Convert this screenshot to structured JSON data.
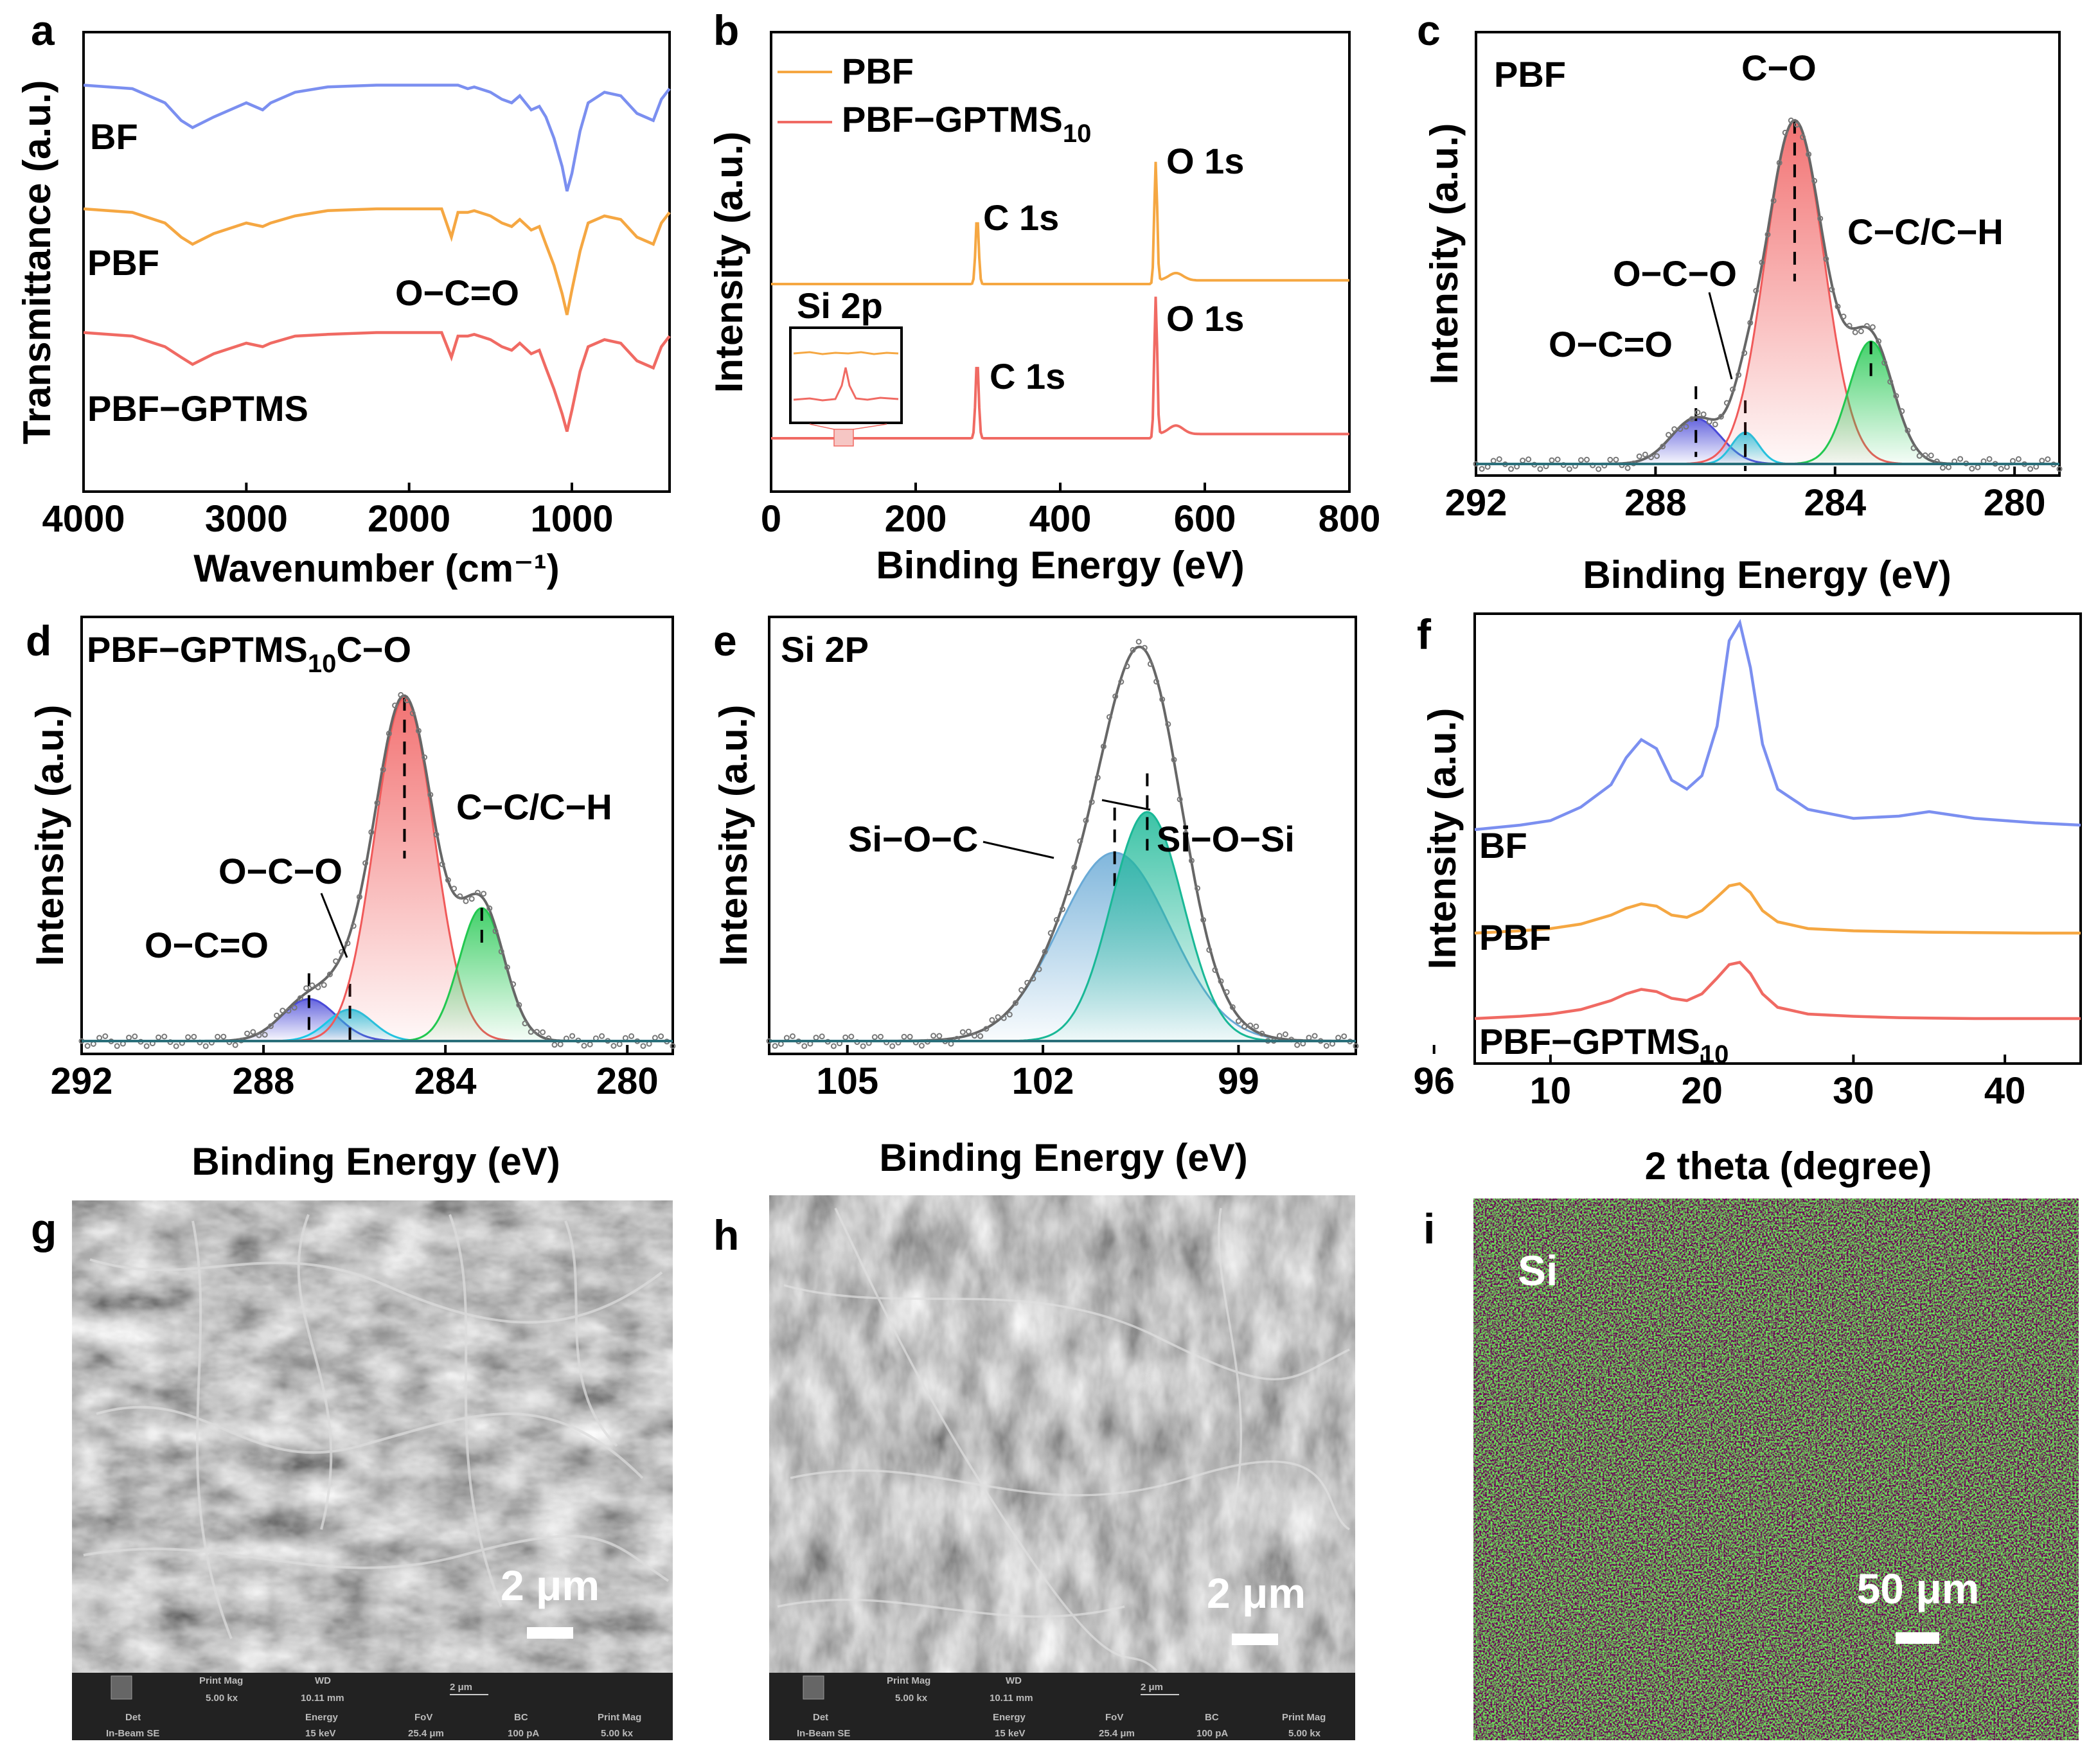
{
  "colors": {
    "BF": "#7b8ff0",
    "PBF": "#f5a742",
    "PBF-GPTMS": "#f06a63",
    "fit": "#666666",
    "oc_o": "#4a4ad8",
    "o_c_o": "#19c8e6",
    "c_o": "#f05a5a",
    "cc_ch": "#22c850",
    "si_o_c": "#6aaad6",
    "si_o_si": "#19b896",
    "edx": "#33cc33"
  },
  "chart_data": [
    {
      "panel": "a",
      "type": "line",
      "xlabel": "Wavenumber (cm⁻¹)",
      "ylabel": "Transmittance (a.u.)",
      "xlim": [
        4000,
        400
      ],
      "xticks": [
        "4000",
        "3000",
        "2000",
        "1000"
      ],
      "series": [
        {
          "name": "BF",
          "label": "BF",
          "key": "BF",
          "offset": 0.85,
          "x": [
            4000,
            3700,
            3500,
            3400,
            3330,
            3200,
            3000,
            2900,
            2850,
            2700,
            2500,
            2200,
            2000,
            1800,
            1700,
            1640,
            1600,
            1500,
            1430,
            1370,
            1320,
            1250,
            1200,
            1160,
            1110,
            1060,
            1030,
            1000,
            950,
            900,
            800,
            700,
            600,
            550,
            500,
            450,
            400
          ],
          "y": [
            0.85,
            0.84,
            0.8,
            0.75,
            0.73,
            0.76,
            0.8,
            0.78,
            0.8,
            0.83,
            0.845,
            0.85,
            0.85,
            0.85,
            0.85,
            0.84,
            0.845,
            0.83,
            0.81,
            0.8,
            0.82,
            0.78,
            0.79,
            0.76,
            0.7,
            0.62,
            0.55,
            0.6,
            0.72,
            0.8,
            0.83,
            0.82,
            0.77,
            0.76,
            0.75,
            0.81,
            0.84
          ]
        },
        {
          "name": "PBF",
          "label": "PBF",
          "key": "PBF",
          "offset": 0.5,
          "x": [
            4000,
            3700,
            3500,
            3400,
            3330,
            3200,
            3000,
            2900,
            2850,
            2700,
            2500,
            2200,
            2000,
            1800,
            1740,
            1700,
            1640,
            1600,
            1500,
            1430,
            1370,
            1320,
            1250,
            1200,
            1160,
            1110,
            1060,
            1030,
            1000,
            950,
            900,
            800,
            700,
            600,
            550,
            500,
            450,
            400
          ],
          "y": [
            0.5,
            0.49,
            0.46,
            0.42,
            0.4,
            0.43,
            0.46,
            0.45,
            0.46,
            0.48,
            0.495,
            0.5,
            0.5,
            0.5,
            0.42,
            0.49,
            0.49,
            0.495,
            0.48,
            0.46,
            0.45,
            0.47,
            0.44,
            0.45,
            0.4,
            0.34,
            0.26,
            0.2,
            0.27,
            0.38,
            0.46,
            0.48,
            0.47,
            0.42,
            0.41,
            0.4,
            0.46,
            0.49
          ]
        },
        {
          "name": "PBF−GPTMS",
          "label": "PBF−GPTMS",
          "key": "PBF-GPTMS",
          "offset": 0.15,
          "x": [
            4000,
            3700,
            3500,
            3400,
            3330,
            3200,
            3000,
            2900,
            2850,
            2700,
            2500,
            2200,
            2000,
            1800,
            1740,
            1700,
            1640,
            1600,
            1500,
            1430,
            1370,
            1320,
            1250,
            1200,
            1160,
            1110,
            1060,
            1030,
            1000,
            950,
            900,
            800,
            700,
            600,
            550,
            500,
            450,
            400
          ],
          "y": [
            0.15,
            0.14,
            0.11,
            0.08,
            0.06,
            0.09,
            0.12,
            0.11,
            0.12,
            0.14,
            0.145,
            0.15,
            0.15,
            0.15,
            0.08,
            0.14,
            0.14,
            0.145,
            0.13,
            0.11,
            0.1,
            0.12,
            0.09,
            0.1,
            0.05,
            -0.01,
            -0.08,
            -0.13,
            -0.07,
            0.04,
            0.11,
            0.13,
            0.12,
            0.07,
            0.06,
            0.05,
            0.11,
            0.14
          ]
        }
      ],
      "annotations": [
        "O−C=O"
      ]
    },
    {
      "panel": "b",
      "type": "line",
      "xlabel": "Binding Energy (eV)",
      "ylabel": "Intensity (a.u.)",
      "xlim": [
        0,
        800
      ],
      "xticks": [
        "0",
        "200",
        "400",
        "600",
        "800"
      ],
      "legend": [
        {
          "name": "PBF",
          "key": "PBF"
        },
        {
          "name": "PBF−GPTMS",
          "sub": "10",
          "key": "PBF-GPTMS"
        }
      ],
      "peaks": {
        "C1s": 285,
        "O1s": 532,
        "Si2p": 102
      },
      "labels": {
        "c1s": "C 1s",
        "o1s": "O 1s",
        "inset": "Si 2p"
      }
    },
    {
      "panel": "c",
      "type": "area",
      "title": "PBF",
      "xlabel": "Binding Energy (eV)",
      "ylabel": "Intensity (a.u.)",
      "xlim": [
        292,
        279
      ],
      "xticks": [
        "292",
        "288",
        "284",
        "280"
      ],
      "components": [
        {
          "name": "O−C=O",
          "center": 287.1,
          "height": 0.13,
          "width": 0.55,
          "key": "oc_o"
        },
        {
          "name": "O−C−O",
          "center": 286.0,
          "height": 0.09,
          "width": 0.3,
          "key": "o_c_o"
        },
        {
          "name": "C−O",
          "center": 284.9,
          "height": 0.98,
          "width": 0.65,
          "key": "c_o"
        },
        {
          "name": "C−C/C−H",
          "center": 283.2,
          "height": 0.35,
          "width": 0.5,
          "key": "cc_ch"
        }
      ]
    },
    {
      "panel": "d",
      "type": "area",
      "title": "PBF−GPTMS",
      "title_sub": "10",
      "xlabel": "Binding Energy (eV)",
      "ylabel": "Intensity (a.u.)",
      "xlim": [
        292,
        279
      ],
      "xticks": [
        "292",
        "288",
        "284",
        "280"
      ],
      "components": [
        {
          "name": "O−C=O",
          "center": 287.0,
          "height": 0.12,
          "width": 0.6,
          "key": "oc_o"
        },
        {
          "name": "O−C−O",
          "center": 286.1,
          "height": 0.09,
          "width": 0.5,
          "key": "o_c_o"
        },
        {
          "name": "C−O",
          "center": 284.9,
          "height": 0.98,
          "width": 0.65,
          "key": "c_o"
        },
        {
          "name": "C−C/C−H",
          "center": 283.2,
          "height": 0.38,
          "width": 0.5,
          "key": "cc_ch"
        }
      ]
    },
    {
      "panel": "e",
      "type": "area",
      "title": "Si 2P",
      "xlabel": "Binding Energy (eV)",
      "ylabel": "Intensity (a.u.)",
      "xlim": [
        106.2,
        97.2
      ],
      "xticks": [
        "105",
        "102",
        "99",
        "96"
      ],
      "components": [
        {
          "name": "Si−O−C",
          "center": 100.9,
          "height": 0.51,
          "width": 0.85,
          "key": "si_o_c"
        },
        {
          "name": "Si−O−Si",
          "center": 100.4,
          "height": 0.62,
          "width": 0.55,
          "key": "si_o_si"
        }
      ]
    },
    {
      "panel": "f",
      "type": "line",
      "xlabel": "2 theta (degree)",
      "ylabel": "Intensity (a.u.)",
      "xlim": [
        5,
        45
      ],
      "xticks": [
        "10",
        "20",
        "30",
        "40"
      ],
      "series": [
        {
          "name": "BF",
          "label": "BF",
          "key": "BF",
          "base": 0.52,
          "x": [
            5,
            8,
            10,
            12,
            14,
            15,
            16,
            17,
            18,
            19,
            20,
            21,
            21.8,
            22.5,
            23.2,
            24,
            25,
            27,
            30,
            33,
            35,
            38,
            42,
            45
          ],
          "y": [
            0.52,
            0.53,
            0.54,
            0.57,
            0.62,
            0.68,
            0.72,
            0.7,
            0.63,
            0.61,
            0.64,
            0.75,
            0.94,
            0.98,
            0.88,
            0.71,
            0.61,
            0.565,
            0.545,
            0.55,
            0.56,
            0.545,
            0.535,
            0.53
          ]
        },
        {
          "name": "PBF",
          "label": "PBF",
          "key": "PBF",
          "base": 0.29,
          "x": [
            5,
            8,
            10,
            12,
            14,
            15,
            16,
            17,
            18,
            19,
            20,
            21,
            21.8,
            22.5,
            23.2,
            24,
            25,
            27,
            30,
            33,
            35,
            38,
            42,
            45
          ],
          "y": [
            0.29,
            0.295,
            0.3,
            0.31,
            0.33,
            0.345,
            0.355,
            0.35,
            0.33,
            0.325,
            0.34,
            0.37,
            0.395,
            0.4,
            0.38,
            0.34,
            0.315,
            0.3,
            0.295,
            0.293,
            0.292,
            0.291,
            0.29,
            0.29
          ]
        },
        {
          "name": "PBF−GPTMS",
          "label": "PBF−GPTMS",
          "sub": "10",
          "key": "PBF-GPTMS",
          "base": 0.1,
          "x": [
            5,
            8,
            10,
            12,
            14,
            15,
            16,
            17,
            18,
            19,
            20,
            21,
            21.8,
            22.5,
            23.2,
            24,
            25,
            27,
            30,
            33,
            35,
            38,
            42,
            45
          ],
          "y": [
            0.1,
            0.105,
            0.11,
            0.12,
            0.14,
            0.155,
            0.165,
            0.16,
            0.145,
            0.14,
            0.155,
            0.19,
            0.22,
            0.225,
            0.2,
            0.155,
            0.125,
            0.11,
            0.105,
            0.102,
            0.101,
            0.1,
            0.1,
            0.1
          ]
        }
      ]
    }
  ],
  "images": {
    "g": {
      "panel": "g",
      "scale": "2 μm",
      "bar": {
        "print_mag": "Print Mag",
        "wd": "WD",
        "pm_val": "5.00 kx",
        "wd_val": "10.11 mm",
        "scale_small": "2 μm",
        "det": "Det",
        "energy": "Energy",
        "fov": "FoV",
        "bc": "BC",
        "print_mag2": "Print Mag",
        "det_val": "In-Beam SE",
        "energy_val": "15 keV",
        "fov_val": "25.4 μm",
        "bc_val": "100 pA",
        "pm2_val": "5.00 kx"
      }
    },
    "h": {
      "panel": "h",
      "scale": "2 μm",
      "bar": {
        "print_mag": "Print Mag",
        "wd": "WD",
        "pm_val": "5.00 kx",
        "wd_val": "10.11 mm",
        "scale_small": "2 μm",
        "det": "Det",
        "energy": "Energy",
        "fov": "FoV",
        "bc": "BC",
        "print_mag2": "Print Mag",
        "det_val": "In-Beam SE",
        "energy_val": "15 keV",
        "fov_val": "25.4 μm",
        "bc_val": "100 pA",
        "pm2_val": "5.00 kx"
      }
    },
    "i": {
      "panel": "i",
      "element": "Si",
      "scale": "50 μm"
    }
  }
}
